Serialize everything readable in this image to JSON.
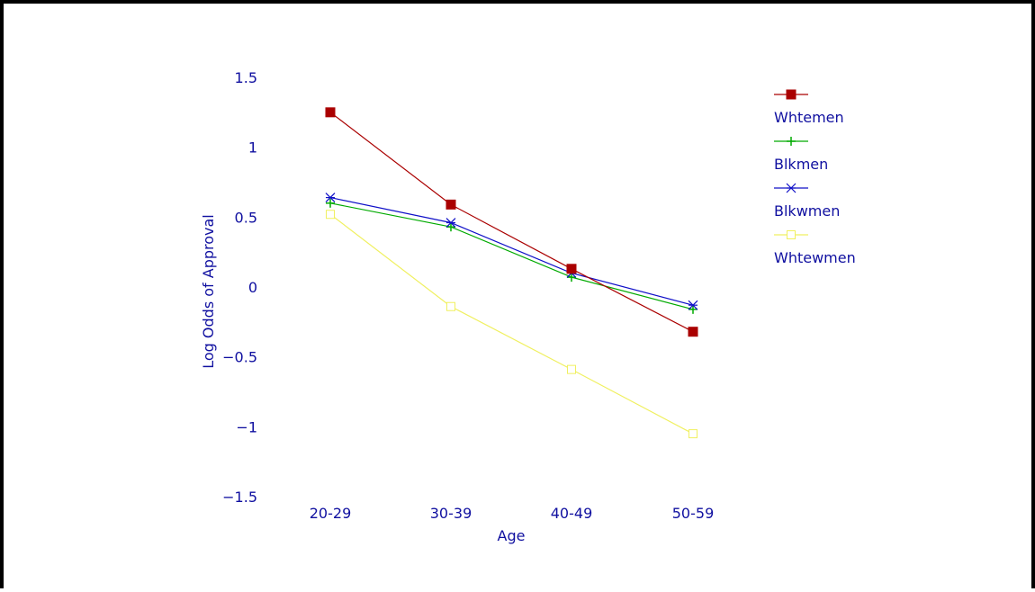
{
  "chart_data": {
    "type": "line",
    "title": "",
    "xlabel": "Age",
    "ylabel": "Log Odds of Approval",
    "categories": [
      "20-29",
      "30-39",
      "40-49",
      "50-59"
    ],
    "ylim": [
      -1.5,
      1.5
    ],
    "yticks": [
      1.5,
      1,
      0.5,
      0,
      -0.5,
      -1,
      -1.5
    ],
    "ytick_labels": [
      "1.5",
      "1",
      "0.5",
      "0",
      "−0.5",
      "−1",
      "−1.5"
    ],
    "grid": false,
    "legend_position": "right",
    "series": [
      {
        "name": "Whtemen",
        "values": [
          1.25,
          0.59,
          0.13,
          -0.32
        ],
        "color": "#aa0000",
        "marker": "filled-square"
      },
      {
        "name": "Blkmen",
        "values": [
          0.6,
          0.43,
          0.07,
          -0.16
        ],
        "color": "#00aa00",
        "marker": "plus"
      },
      {
        "name": "Blkwmen",
        "values": [
          0.64,
          0.46,
          0.1,
          -0.13
        ],
        "color": "#1010c8",
        "marker": "asterisk"
      },
      {
        "name": "Whtewmen",
        "values": [
          0.52,
          -0.14,
          -0.59,
          -1.05
        ],
        "color": "#f0f060",
        "marker": "open-square"
      }
    ]
  }
}
